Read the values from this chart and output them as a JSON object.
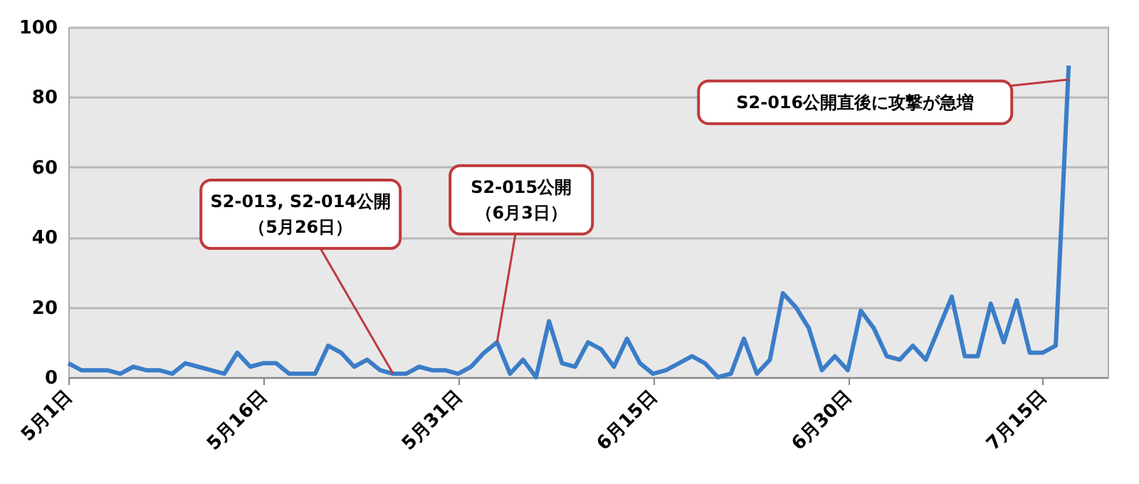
{
  "chart_data": {
    "type": "line",
    "x": [
      "--05-01",
      "--05-02",
      "--05-03",
      "--05-04",
      "--05-05",
      "--05-06",
      "--05-07",
      "--05-08",
      "--05-09",
      "--05-10",
      "--05-11",
      "--05-12",
      "--05-13",
      "--05-14",
      "--05-15",
      "--05-16",
      "--05-17",
      "--05-18",
      "--05-19",
      "--05-20",
      "--05-21",
      "--05-22",
      "--05-23",
      "--05-24",
      "--05-25",
      "--05-26",
      "--05-27",
      "--05-28",
      "--05-29",
      "--05-30",
      "--05-31",
      "--06-01",
      "--06-02",
      "--06-03",
      "--06-04",
      "--06-05",
      "--06-06",
      "--06-07",
      "--06-08",
      "--06-09",
      "--06-10",
      "--06-11",
      "--06-12",
      "--06-13",
      "--06-14",
      "--06-15",
      "--06-16",
      "--06-17",
      "--06-18",
      "--06-19",
      "--06-20",
      "--06-21",
      "--06-22",
      "--06-23",
      "--06-24",
      "--06-25",
      "--06-26",
      "--06-27",
      "--06-28",
      "--06-29",
      "--06-30",
      "--07-01",
      "--07-02",
      "--07-03",
      "--07-04",
      "--07-05",
      "--07-06",
      "--07-07",
      "--07-08",
      "--07-09",
      "--07-10",
      "--07-11",
      "--07-12",
      "--07-13",
      "--07-14",
      "--07-15",
      "--07-16",
      "--07-17"
    ],
    "series": [
      {
        "color": "#3b7dc8",
        "values": [
          4,
          2,
          2,
          2,
          1,
          3,
          2,
          2,
          1,
          4,
          3,
          2,
          1,
          7,
          3,
          4,
          4,
          1,
          1,
          1,
          9,
          7,
          3,
          5,
          2,
          1,
          1,
          3,
          2,
          2,
          1,
          3,
          7,
          10,
          1,
          5,
          0,
          16,
          4,
          3,
          10,
          8,
          3,
          11,
          4,
          1,
          2,
          4,
          6,
          4,
          0,
          1,
          11,
          1,
          5,
          24,
          20,
          14,
          2,
          6,
          2,
          19,
          14,
          6,
          5,
          9,
          5,
          14,
          23,
          6,
          6,
          21,
          10,
          22,
          7,
          7,
          9,
          89
        ]
      }
    ],
    "xlim": [
      "--05-01",
      "--07-20"
    ],
    "xticks": [
      {
        "value": "--05-01",
        "label": "5月1日"
      },
      {
        "value": "--05-16",
        "label": "5月16日"
      },
      {
        "value": "--05-31",
        "label": "5月31日"
      },
      {
        "value": "--06-15",
        "label": "6月15日"
      },
      {
        "value": "--06-30",
        "label": "6月30日"
      },
      {
        "value": "--07-15",
        "label": "7月15日"
      }
    ],
    "ylim": [
      0,
      100
    ],
    "yticks": [
      0,
      20,
      40,
      60,
      80,
      100
    ],
    "grid": "y",
    "line_style": "solid",
    "annotations": [
      {
        "text": "S2-013, S2-014公開（5月26日）",
        "x": "--05-26",
        "y": 1
      },
      {
        "text": "S2-015公開（6月3日）",
        "x": "--06-03",
        "y": 10
      },
      {
        "text": "S2-016公開直後に攻撃が急増",
        "x": "--07-17",
        "y": 85
      }
    ]
  }
}
